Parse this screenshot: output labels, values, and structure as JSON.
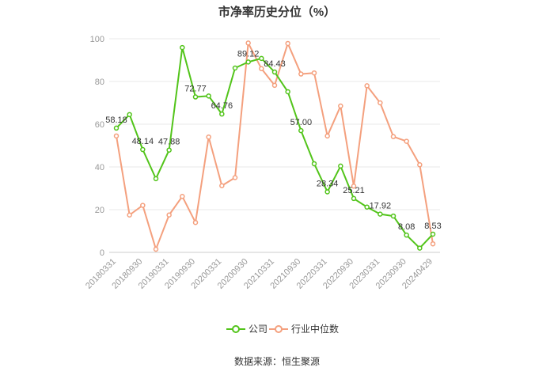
{
  "chart_data": {
    "type": "line",
    "title": "市净率历史分位（%）",
    "source": "数据来源：恒生聚源",
    "ylim": [
      0,
      100
    ],
    "yticks": [
      0,
      20,
      40,
      60,
      80,
      100
    ],
    "xlabels": [
      "20180331",
      "20180930",
      "20190331",
      "20190930",
      "20200331",
      "20200930",
      "20210331",
      "20210930",
      "20220331",
      "20220930",
      "20230331",
      "20230930",
      "20240429"
    ],
    "legend_position": "bottom",
    "grid": true,
    "series": [
      {
        "name": "公司",
        "color": "#52c41a",
        "values": [
          58.18,
          64.5,
          48.14,
          34.5,
          47.88,
          95.9,
          72.77,
          73.2,
          64.76,
          86.3,
          89.12,
          90.8,
          84.43,
          75.2,
          57.0,
          41.5,
          28.34,
          40.4,
          25.21,
          21.2,
          17.92,
          17.0,
          8.08,
          2.0,
          8.53
        ],
        "labels": {
          "0": "58.18",
          "2": "48.14",
          "4": "47.88",
          "6": "72.77",
          "8": "64.76",
          "10": "89.12",
          "12": "84.43",
          "14": "57.00",
          "16": "28.34",
          "18": "25.21",
          "20": "17.92",
          "22": "8.08",
          "24": "8.53"
        }
      },
      {
        "name": "行业中位数",
        "color": "#f4a07e",
        "values": [
          54.5,
          17.5,
          22.0,
          1.5,
          17.5,
          26.2,
          14.0,
          54.0,
          31.2,
          35.0,
          98.0,
          86.0,
          78.2,
          97.8,
          83.5,
          84.0,
          54.5,
          68.5,
          31.0,
          78.0,
          70.0,
          54.2,
          52.0,
          41.0,
          4.0
        ]
      }
    ]
  }
}
